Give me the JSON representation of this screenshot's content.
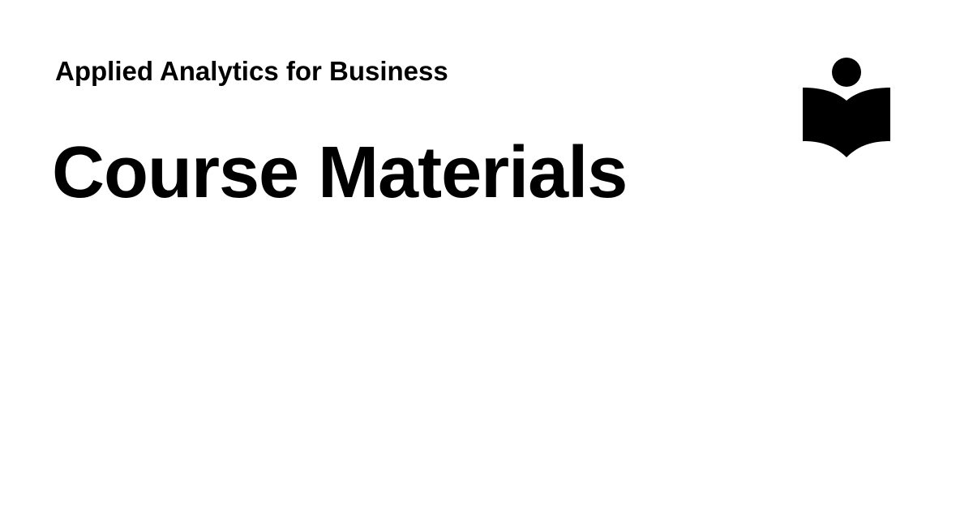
{
  "header": {
    "course_title": "Applied Analytics for Business"
  },
  "main": {
    "heading": "Course Materials"
  },
  "logo": {
    "icon": "reader-book-icon",
    "color": "#000000"
  }
}
